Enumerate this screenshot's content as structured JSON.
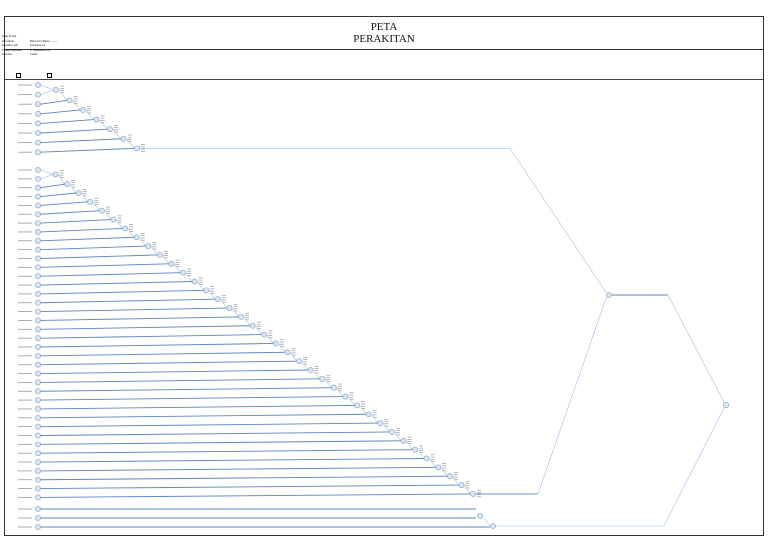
{
  "title": {
    "line1": "PETA",
    "line2": "PERAKITAN"
  },
  "meta": {
    "rows": [
      {
        "key": "Nama Produk",
        "value": ""
      },
      {
        "key": "Perusahaan",
        "value": "Bintal Kacu Bunas ..........."
      },
      {
        "key": "Dipetakan oleh",
        "value": "Kelompok 6 A"
      },
      {
        "key": "Tanggal Dipetakan",
        "value": "27 September 2010"
      },
      {
        "key": "Sekarang",
        "value": "Usulan"
      }
    ]
  },
  "colors": {
    "line": "#5b86c4",
    "line_light": "#9fc0e6",
    "node_fill": "#dbe6f3",
    "node_stroke": "#7f9ec6",
    "frame": "#333333"
  },
  "diagram": {
    "kind": "assembly-chart",
    "group_a_parts": 8,
    "group_b_parts": 38,
    "group_c_parts": 2
  }
}
